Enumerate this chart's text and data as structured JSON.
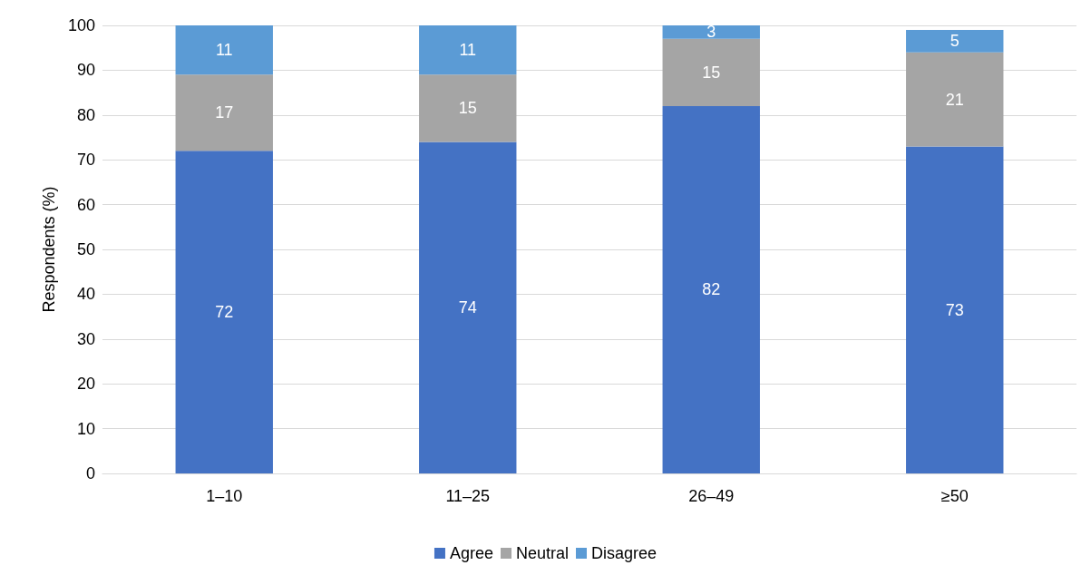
{
  "chart_data": {
    "type": "bar",
    "stacked": true,
    "ylabel": "Respondents (%)",
    "categories": [
      "1–10",
      "11–25",
      "26–49",
      "≥50"
    ],
    "series": [
      {
        "name": "Agree",
        "color": "#4472c4",
        "values": [
          72,
          74,
          82,
          73
        ]
      },
      {
        "name": "Neutral",
        "color": "#a5a5a5",
        "values": [
          17,
          15,
          15,
          21
        ]
      },
      {
        "name": "Disagree",
        "color": "#5b9bd5",
        "values": [
          11,
          11,
          3,
          5
        ]
      }
    ],
    "ylim": [
      0,
      100
    ],
    "yticks": [
      0,
      10,
      20,
      30,
      40,
      50,
      60,
      70,
      80,
      90,
      100
    ],
    "grid": "y",
    "legend": "bottom",
    "data_labels": true
  }
}
